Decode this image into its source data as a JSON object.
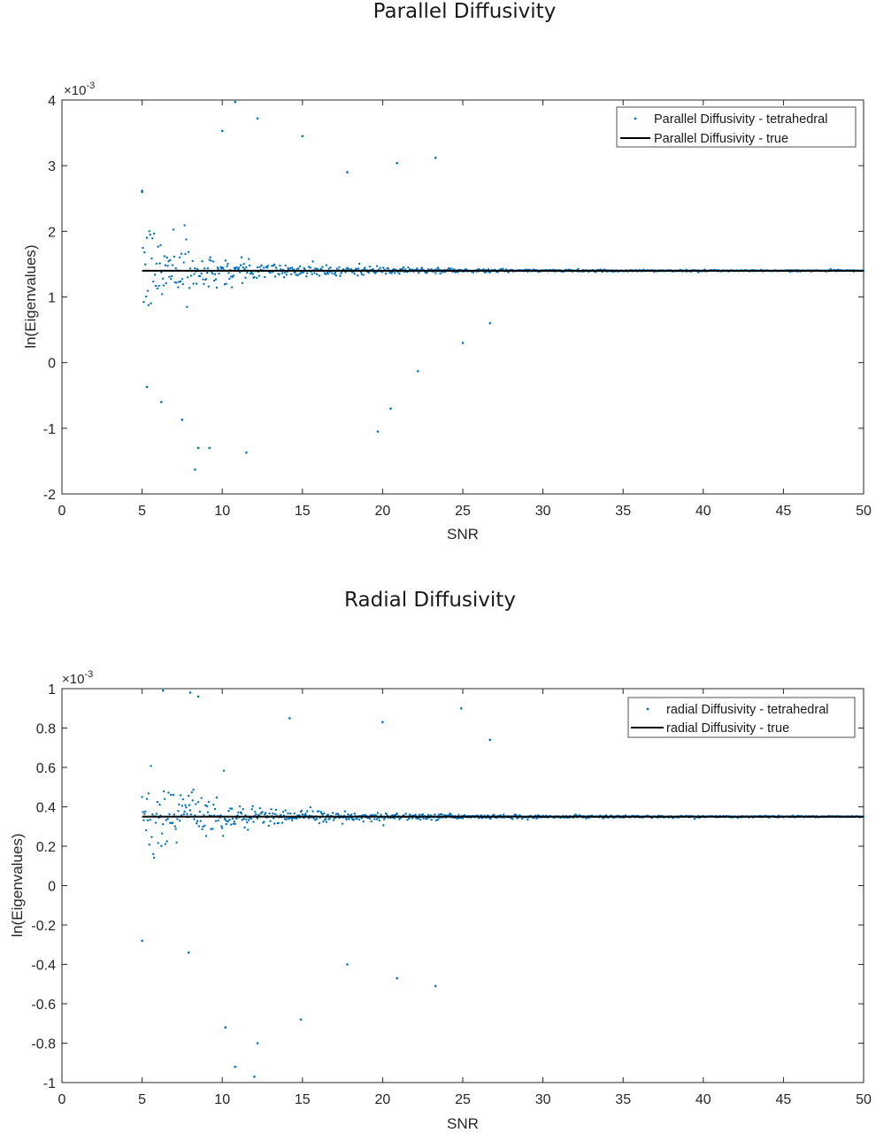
{
  "charts": [
    {
      "id": "parallel",
      "title": "Parallel Diffusivity",
      "xlabel": "SNR",
      "ylabel": "ln(Eigenvalues)",
      "exponent_label": "×10",
      "exponent_power": "-3",
      "legend": {
        "scatter": "Parallel Diffusivity - tetrahedral",
        "line": "Parallel Diffusivity - true"
      }
    },
    {
      "id": "radial",
      "title": "Radial Diffusivity",
      "xlabel": "SNR",
      "ylabel": "ln(Eigenvalues)",
      "exponent_label": "×10",
      "exponent_power": "-3",
      "legend": {
        "scatter": "radial Diffusivity - tetrahedral",
        "line": "radial Diffusivity - true"
      }
    }
  ],
  "chart_data": [
    {
      "type": "scatter",
      "title": "Parallel Diffusivity",
      "xlabel": "SNR",
      "ylabel": "ln(Eigenvalues)",
      "xlim": [
        0,
        50
      ],
      "ylim": [
        -0.002,
        0.004
      ],
      "y_exponent": -3,
      "xticks": [
        0,
        5,
        10,
        15,
        20,
        25,
        30,
        35,
        40,
        45,
        50
      ],
      "yticks": [
        -2,
        -1,
        0,
        1,
        2,
        3,
        4
      ],
      "grid": false,
      "legend_position": "top-right",
      "series": [
        {
          "name": "Parallel Diffusivity - tetrahedral",
          "kind": "scatter",
          "color": "#0072BD",
          "x_range": [
            5,
            50
          ],
          "x_step": 0.05,
          "center": 0.0014,
          "spread_at_snr5": 0.0008,
          "notable_points": [
            [
              5,
              0.0026
            ],
            [
              5.3,
              -0.00037
            ],
            [
              6.2,
              -0.0006
            ],
            [
              7.5,
              -0.00087
            ],
            [
              8.3,
              -0.00163
            ],
            [
              8.5,
              -0.0013
            ],
            [
              9.2,
              -0.0013
            ],
            [
              10,
              0.00353
            ],
            [
              10.8,
              0.00397
            ],
            [
              11.5,
              -0.00137
            ],
            [
              12.2,
              0.00372
            ],
            [
              15,
              0.00345
            ],
            [
              17.8,
              0.0029
            ],
            [
              19.7,
              -0.00105
            ],
            [
              20.5,
              -0.0007
            ],
            [
              20.9,
              0.00304
            ],
            [
              22.2,
              -0.00013
            ],
            [
              23.3,
              0.00312
            ],
            [
              25,
              0.0003
            ],
            [
              26.7,
              0.0006
            ]
          ]
        },
        {
          "name": "Parallel Diffusivity - true",
          "kind": "line",
          "color": "#000000",
          "x": [
            5,
            50
          ],
          "y": [
            0.0014,
            0.0014
          ]
        }
      ]
    },
    {
      "type": "scatter",
      "title": "Radial Diffusivity",
      "xlabel": "SNR",
      "ylabel": "ln(Eigenvalues)",
      "xlim": [
        0,
        50
      ],
      "ylim": [
        -0.001,
        0.001
      ],
      "y_exponent": -3,
      "xticks": [
        0,
        5,
        10,
        15,
        20,
        25,
        30,
        35,
        40,
        45,
        50
      ],
      "yticks": [
        "-1",
        "-0.8",
        "-0.6",
        "-0.4",
        "-0.2",
        "0",
        "0.2",
        "0.4",
        "0.6",
        "0.8",
        "1"
      ],
      "ytick_values": [
        -1,
        -0.8,
        -0.6,
        -0.4,
        -0.2,
        0,
        0.2,
        0.4,
        0.6,
        0.8,
        1
      ],
      "grid": false,
      "legend_position": "top-right",
      "series": [
        {
          "name": "radial Diffusivity - tetrahedral",
          "kind": "scatter",
          "color": "#0072BD",
          "x_range": [
            5,
            50
          ],
          "x_step": 0.05,
          "center": 0.00035,
          "spread_at_snr5": 0.0003,
          "notable_points": [
            [
              5,
              -0.00028
            ],
            [
              6.3,
              0.00099
            ],
            [
              7.9,
              -0.00034
            ],
            [
              8,
              0.00098
            ],
            [
              8.5,
              0.00096
            ],
            [
              10.2,
              -0.00072
            ],
            [
              10.8,
              -0.00092
            ],
            [
              12,
              -0.00097
            ],
            [
              12.2,
              -0.0008
            ],
            [
              14.2,
              0.00085
            ],
            [
              14.9,
              -0.00068
            ],
            [
              17.8,
              -0.0004
            ],
            [
              20,
              0.00083
            ],
            [
              20.9,
              -0.00047
            ],
            [
              23.3,
              -0.00051
            ],
            [
              24.9,
              0.0009
            ],
            [
              26.7,
              0.00074
            ]
          ]
        },
        {
          "name": "radial Diffusivity - true",
          "kind": "line",
          "color": "#000000",
          "x": [
            5,
            50
          ],
          "y": [
            0.00035,
            0.00035
          ]
        }
      ]
    }
  ]
}
